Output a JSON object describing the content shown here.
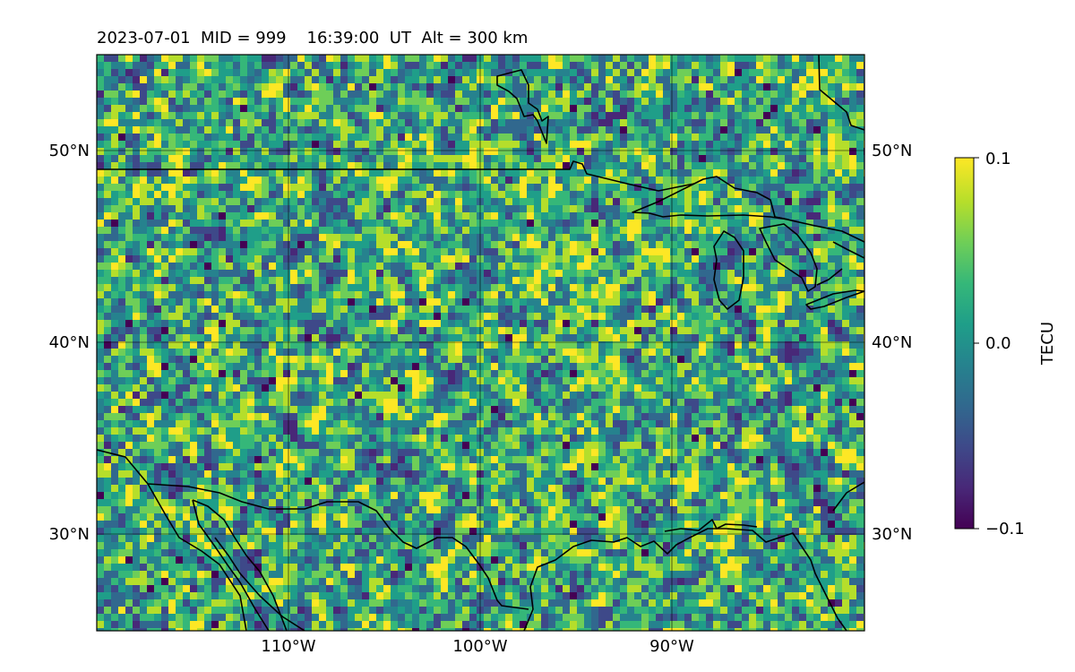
{
  "title": "2023-07-01  MID = 999    16:39:00  UT  Alt = 300 km",
  "map": {
    "lon_range": [
      -120,
      -80
    ],
    "lat_range": [
      25,
      55
    ],
    "grid": true,
    "lon_ticks": [
      {
        "value": -110,
        "label": "110°W"
      },
      {
        "value": -100,
        "label": "100°W"
      },
      {
        "value": -90,
        "label": "90°W"
      }
    ],
    "lat_ticks": [
      {
        "value": 30,
        "label": "30°N"
      },
      {
        "value": 40,
        "label": "40°N"
      },
      {
        "value": 50,
        "label": "50°N"
      }
    ]
  },
  "colorbar": {
    "label": "TECU",
    "colormap": "viridis",
    "vmin": -0.1,
    "vmax": 0.1,
    "ticks": [
      {
        "value": 0.1,
        "label": "0.1"
      },
      {
        "value": 0.0,
        "label": "0.0"
      },
      {
        "value": -0.1,
        "label": "−0.1"
      }
    ]
  },
  "colors": {
    "viridis": [
      "#440154",
      "#482878",
      "#3e4989",
      "#31688e",
      "#26828e",
      "#1f9e89",
      "#35b779",
      "#6ece58",
      "#b5de2b",
      "#fde725"
    ],
    "coastline": "#000000",
    "grid": "#000000"
  }
}
